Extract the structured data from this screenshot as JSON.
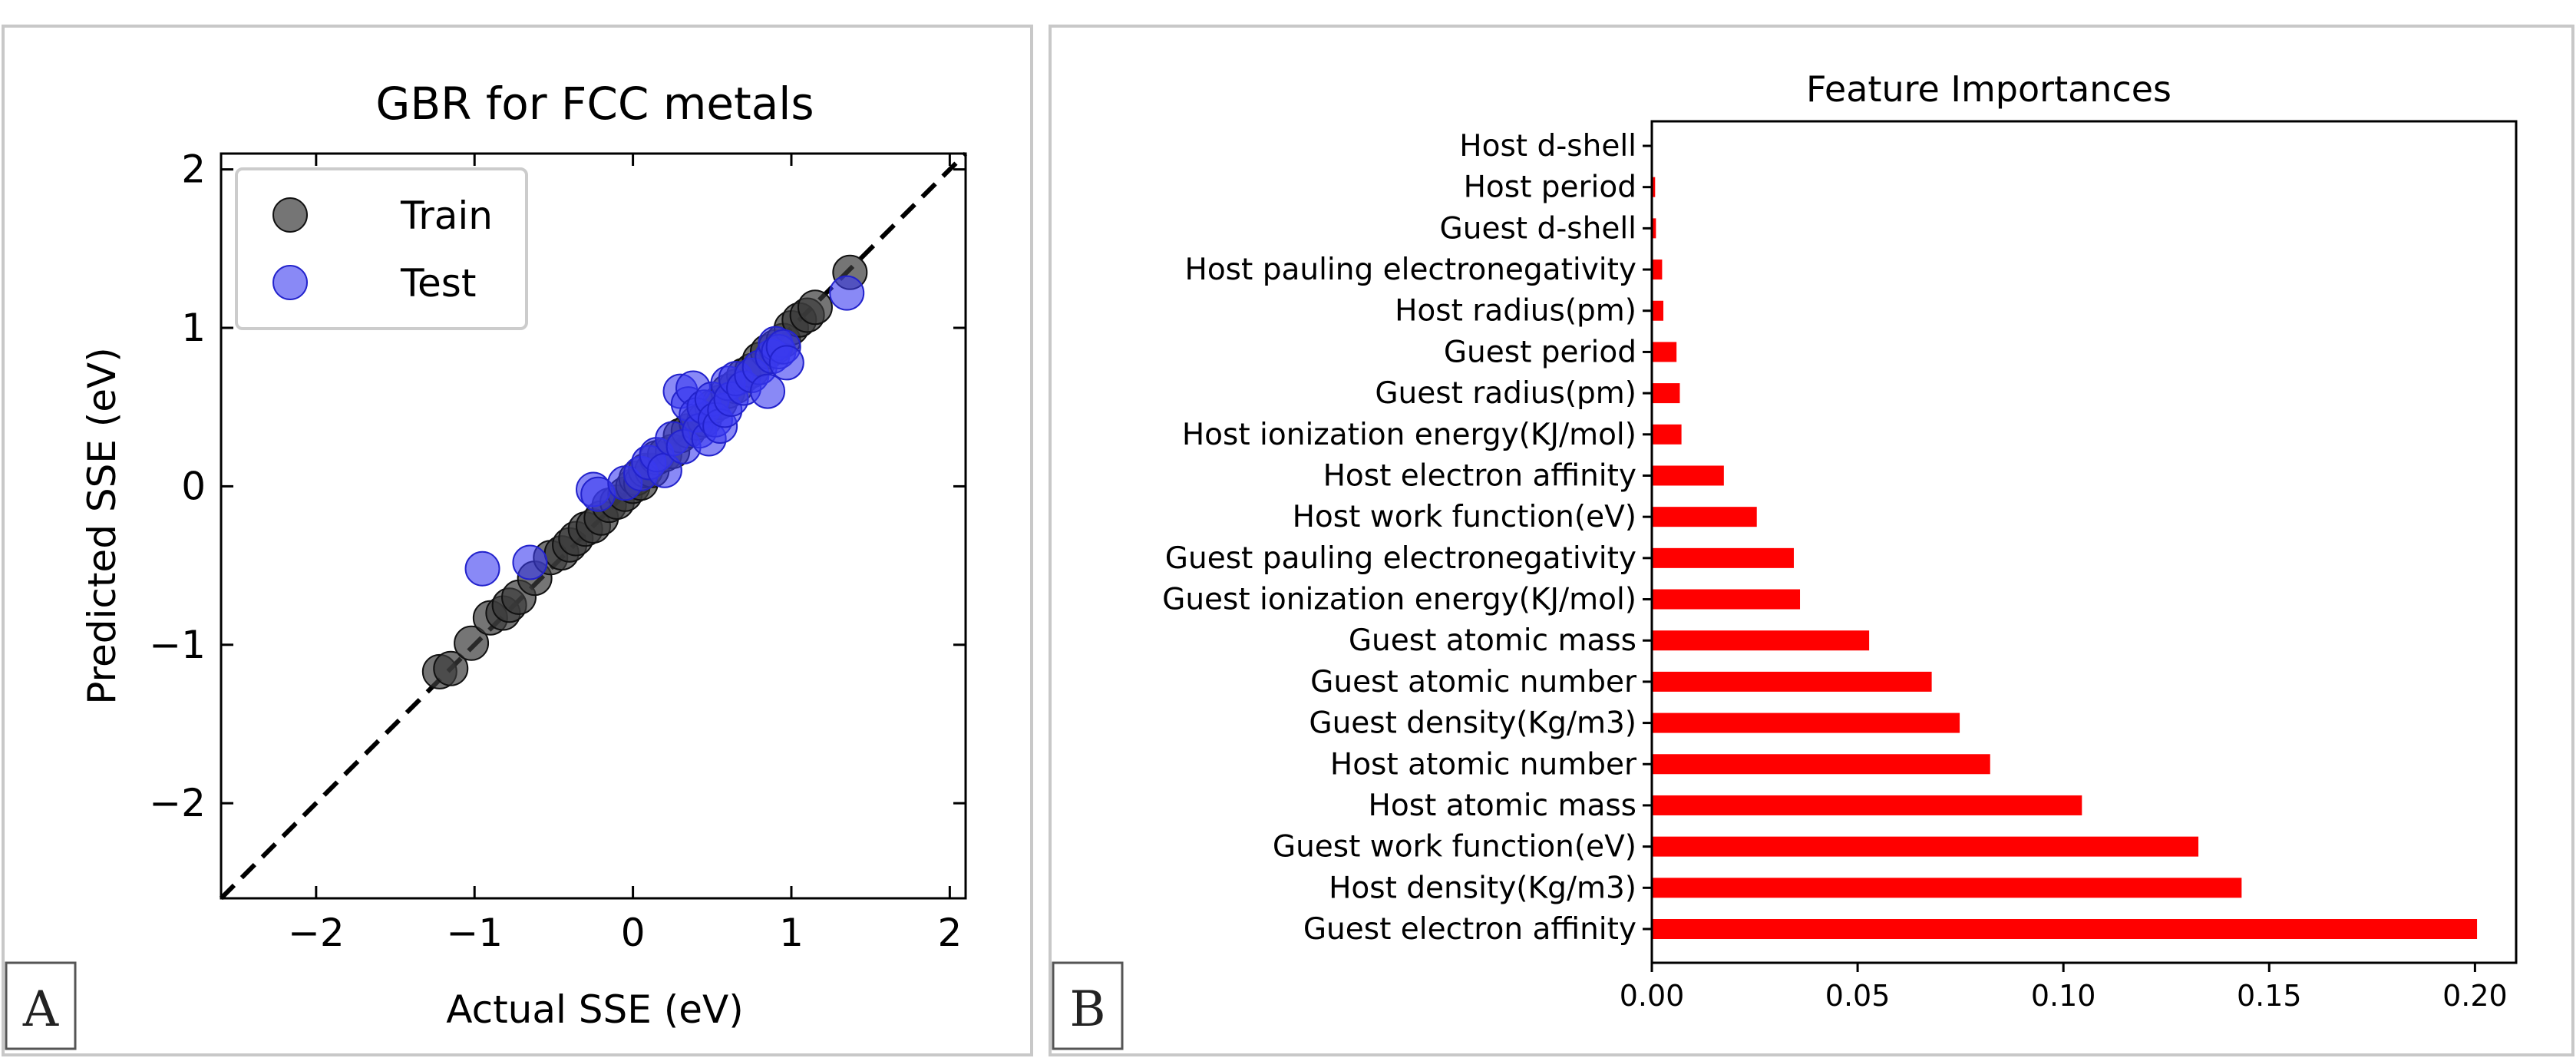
{
  "chart_data": [
    {
      "panel": "A",
      "type": "scatter",
      "title": "GBR for FCC metals",
      "xlabel": "Actual SSE (eV)",
      "ylabel": "Predicted SSE (eV)",
      "xlim": [
        -2.6,
        2.1
      ],
      "ylim": [
        -2.6,
        2.1
      ],
      "xticks": [
        -2,
        -1,
        0,
        1,
        2
      ],
      "yticks": [
        -2,
        -1,
        0,
        1,
        2
      ],
      "xtick_labels": [
        "−2",
        "−1",
        "0",
        "1",
        "2"
      ],
      "ytick_labels": [
        "−2",
        "−1",
        "0",
        "1",
        "2"
      ],
      "reference_line": "y = x (dashed)",
      "legend": {
        "placement": "top-left",
        "entries": [
          "Train",
          "Test"
        ]
      },
      "series": [
        {
          "name": "Train",
          "color": "#3a3a3a",
          "points": [
            [
              -1.22,
              -1.17
            ],
            [
              -1.15,
              -1.15
            ],
            [
              -1.02,
              -0.99
            ],
            [
              -0.9,
              -0.83
            ],
            [
              -0.82,
              -0.8
            ],
            [
              -0.78,
              -0.75
            ],
            [
              -0.72,
              -0.7
            ],
            [
              -0.62,
              -0.58
            ],
            [
              -0.52,
              -0.45
            ],
            [
              -0.45,
              -0.42
            ],
            [
              -0.4,
              -0.37
            ],
            [
              -0.36,
              -0.33
            ],
            [
              -0.3,
              -0.27
            ],
            [
              -0.25,
              -0.25
            ],
            [
              -0.2,
              -0.2
            ],
            [
              -0.15,
              -0.12
            ],
            [
              -0.1,
              -0.1
            ],
            [
              -0.05,
              -0.05
            ],
            [
              0.0,
              0.0
            ],
            [
              0.02,
              0.05
            ],
            [
              0.05,
              0.02
            ],
            [
              0.08,
              0.1
            ],
            [
              0.12,
              0.1
            ],
            [
              0.15,
              0.18
            ],
            [
              0.2,
              0.2
            ],
            [
              0.25,
              0.22
            ],
            [
              0.3,
              0.32
            ],
            [
              0.35,
              0.35
            ],
            [
              0.4,
              0.4
            ],
            [
              0.45,
              0.42
            ],
            [
              0.5,
              0.5
            ],
            [
              0.55,
              0.53
            ],
            [
              0.6,
              0.6
            ],
            [
              0.65,
              0.63
            ],
            [
              0.7,
              0.7
            ],
            [
              0.75,
              0.73
            ],
            [
              0.8,
              0.8
            ],
            [
              0.85,
              0.85
            ],
            [
              0.9,
              0.88
            ],
            [
              0.95,
              0.92
            ],
            [
              1.0,
              1.0
            ],
            [
              1.05,
              1.05
            ],
            [
              1.1,
              1.08
            ],
            [
              1.15,
              1.13
            ],
            [
              1.37,
              1.35
            ]
          ]
        },
        {
          "name": "Test",
          "color": "#3a3af0",
          "points": [
            [
              -0.95,
              -0.52
            ],
            [
              -0.65,
              -0.48
            ],
            [
              -0.25,
              -0.02
            ],
            [
              -0.22,
              -0.05
            ],
            [
              -0.05,
              0.02
            ],
            [
              0.05,
              0.08
            ],
            [
              0.1,
              0.15
            ],
            [
              0.15,
              0.2
            ],
            [
              0.2,
              0.1
            ],
            [
              0.25,
              0.3
            ],
            [
              0.3,
              0.6
            ],
            [
              0.32,
              0.25
            ],
            [
              0.35,
              0.52
            ],
            [
              0.38,
              0.62
            ],
            [
              0.4,
              0.45
            ],
            [
              0.42,
              0.35
            ],
            [
              0.45,
              0.5
            ],
            [
              0.48,
              0.3
            ],
            [
              0.5,
              0.55
            ],
            [
              0.52,
              0.42
            ],
            [
              0.55,
              0.38
            ],
            [
              0.58,
              0.48
            ],
            [
              0.6,
              0.65
            ],
            [
              0.62,
              0.55
            ],
            [
              0.65,
              0.68
            ],
            [
              0.7,
              0.62
            ],
            [
              0.75,
              0.7
            ],
            [
              0.8,
              0.75
            ],
            [
              0.85,
              0.6
            ],
            [
              0.88,
              0.82
            ],
            [
              0.9,
              0.9
            ],
            [
              0.92,
              0.85
            ],
            [
              0.95,
              0.88
            ],
            [
              0.97,
              0.78
            ],
            [
              1.35,
              1.22
            ]
          ]
        }
      ]
    },
    {
      "panel": "B",
      "type": "bar",
      "orientation": "horizontal",
      "title": "Feature Importances",
      "bar_color": "#ff0000",
      "xlim": [
        0,
        0.21
      ],
      "xticks": [
        0.0,
        0.05,
        0.1,
        0.15,
        0.2
      ],
      "xtick_labels": [
        "0.00",
        "0.05",
        "0.10",
        "0.15",
        "0.20"
      ],
      "categories": [
        "Host d-shell",
        "Host period",
        "Guest d-shell",
        "Host pauling electronegativity",
        "Host radius(pm)",
        "Guest period",
        "Guest radius(pm)",
        "Host ionization energy(KJ/mol)",
        "Host electron affinity",
        "Host work function(eV)",
        "Guest pauling electronegativity",
        "Guest ionization energy(KJ/mol)",
        "Guest atomic mass",
        "Guest atomic number",
        "Guest density(Kg/m3)",
        "Host atomic number",
        "Host atomic mass",
        "Guest work function(eV)",
        "Host density(Kg/m3)",
        "Guest electron affinity"
      ],
      "values": [
        0.0002,
        0.0008,
        0.001,
        0.0025,
        0.0028,
        0.006,
        0.0068,
        0.0072,
        0.0175,
        0.0255,
        0.0345,
        0.036,
        0.0528,
        0.068,
        0.0748,
        0.0822,
        0.1045,
        0.1328,
        0.1433,
        0.2005
      ]
    }
  ],
  "panel_labels": {
    "a": "A",
    "b": "B"
  }
}
